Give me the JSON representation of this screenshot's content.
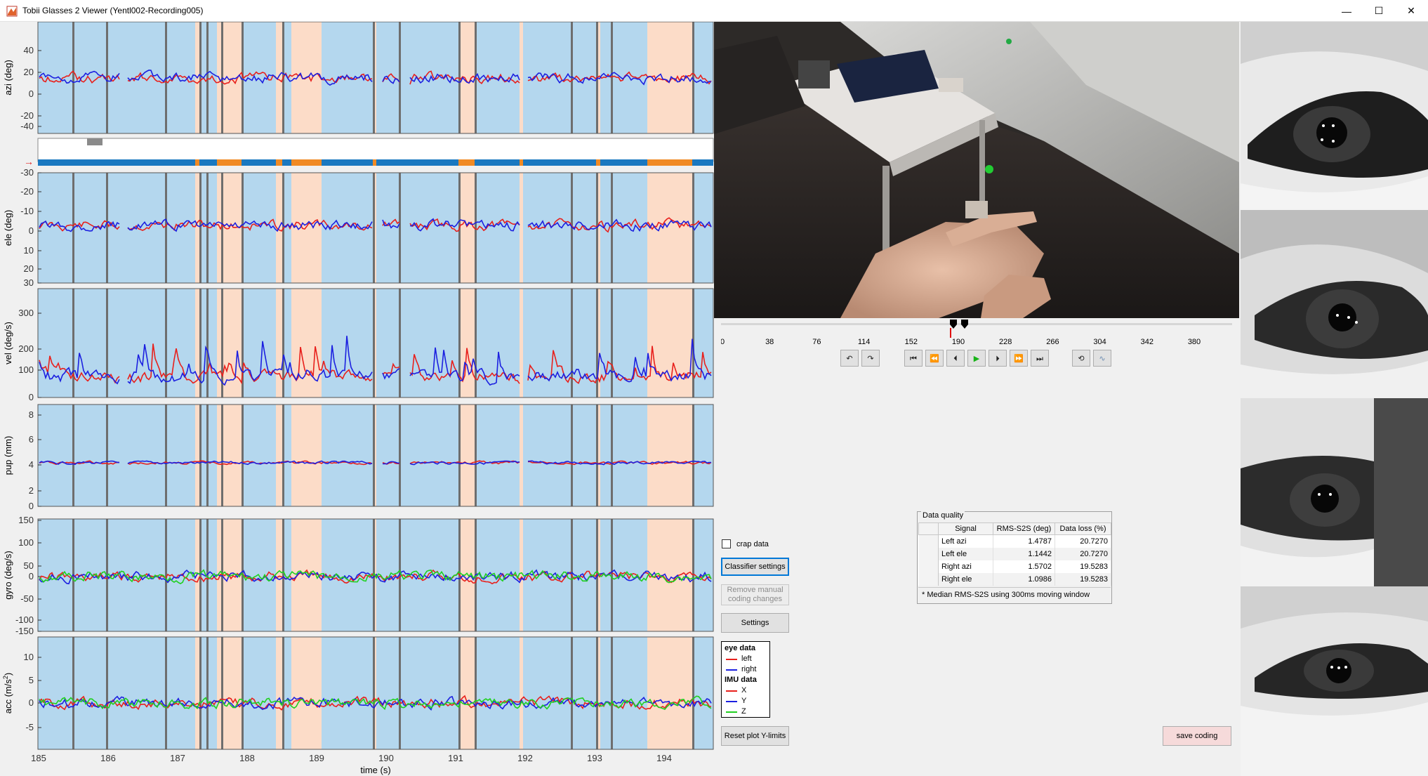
{
  "window": {
    "title": "Tobii Glasses 2 Viewer (Yentl002-Recording005)",
    "minimize_glyph": "—",
    "maximize_glyph": "☐",
    "close_glyph": "✕",
    "icon": "matlab-icon"
  },
  "plots": {
    "x_label": "time (s)",
    "x_ticks": [
      "185",
      "186",
      "187",
      "188",
      "189",
      "190",
      "191",
      "192",
      "193",
      "194"
    ],
    "event_colors": {
      "fixation": "#b4d7ee",
      "saccade": "#fcdcc8",
      "marker": "#909090"
    },
    "panels": [
      {
        "id": "azi",
        "ylabel": "azi (deg)",
        "ticks": [
          "40",
          "20",
          "0",
          "-20",
          "-40"
        ]
      },
      {
        "id": "ele",
        "ylabel": "ele (deg)",
        "ticks": [
          "-30",
          "-20",
          "-10",
          "0",
          "10",
          "20",
          "30"
        ]
      },
      {
        "id": "vel",
        "ylabel": "vel (deg/s)",
        "ticks": [
          "300",
          "200",
          "100",
          "0"
        ]
      },
      {
        "id": "pup",
        "ylabel": "pup (mm)",
        "ticks": [
          "8",
          "6",
          "4",
          "2",
          "0"
        ]
      },
      {
        "id": "gyro",
        "ylabel": "gyro (deg/s)",
        "ticks": [
          "150",
          "100",
          "50",
          "0",
          "-50",
          "-100",
          "-150"
        ]
      },
      {
        "id": "acc",
        "ylabel": "acc (m/s",
        "ylabel_sup": "2",
        "ylabel_end": ")",
        "ticks": [
          "10",
          "5",
          "0",
          "-5"
        ]
      }
    ],
    "classification_arrow": "→"
  },
  "timeline": {
    "ticks": [
      "0",
      "38",
      "76",
      "114",
      "152",
      "190",
      "228",
      "266",
      "304",
      "342",
      "380"
    ]
  },
  "controls": {
    "loop_back": "↶",
    "loop_forward": "↷",
    "skip_start": "⏮",
    "rewind": "⏪",
    "step_back": "⏴",
    "play": "▶",
    "step_forward": "⏵",
    "fast_forward": "⏩",
    "skip_end": "⏭",
    "repeat": "⟲",
    "signal": "∿"
  },
  "sidebar": {
    "crap_data_label": "crap data",
    "classifier_settings": "Classifier settings",
    "remove_manual_1": "Remove manual",
    "remove_manual_2": "coding changes",
    "settings": "Settings",
    "reset_ylimits": "Reset plot Y-limits",
    "save_coding": "save coding"
  },
  "legend": {
    "eye_header": "eye data",
    "left": "left",
    "right": "right",
    "imu_header": "IMU data",
    "x": "X",
    "y": "Y",
    "z": "Z",
    "colors": {
      "red": "#e8201c",
      "blue": "#1c20e0",
      "green": "#20d020"
    }
  },
  "data_quality": {
    "title": "Data quality",
    "columns": [
      "Signal",
      "RMS-S2S (deg)",
      "Data loss (%)"
    ],
    "rows": [
      {
        "signal": "Left azi",
        "rms": "1.4787",
        "loss": "20.7270"
      },
      {
        "signal": "Left ele",
        "rms": "1.1442",
        "loss": "20.7270"
      },
      {
        "signal": "Right azi",
        "rms": "1.5702",
        "loss": "19.5283"
      },
      {
        "signal": "Right ele",
        "rms": "1.0986",
        "loss": "19.5283"
      }
    ],
    "note": "* Median RMS-S2S using 300ms moving window"
  }
}
